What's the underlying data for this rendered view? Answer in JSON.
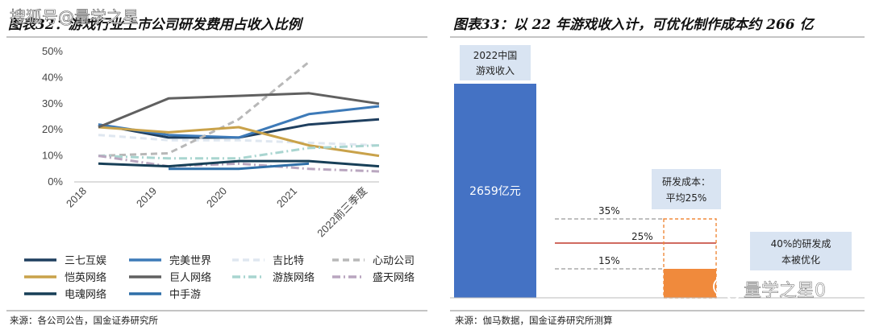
{
  "watermark_top": "搜狐号@量学之星",
  "watermark_bottom": "量学之星0",
  "left_chart": {
    "title": "图表32：游戏行业上市公司研发费用占收入比例",
    "source": "来源：各公司公告，国金证券研究所"
  },
  "right_chart": {
    "title": "图表33：以 22 年游戏收入计，可优化制作成本约 266 亿",
    "source": "来源：伽马数据，国金证券研究所测算"
  },
  "colors": {
    "bar_blue": "#4472c4",
    "bar_orange": "#f08a3c",
    "line_red": "#c0392b",
    "box_bg": "#d9e4f2"
  },
  "chart_data": [
    {
      "type": "line",
      "title": "游戏行业上市公司研发费用占收入比例",
      "categories": [
        "2018",
        "2019",
        "2020",
        "2021",
        "2022前三季度"
      ],
      "y_ticks": [
        "0%",
        "10%",
        "20%",
        "30%",
        "40%",
        "50%"
      ],
      "ylim": [
        0,
        50
      ],
      "grid": false,
      "legend": "bottom",
      "series": [
        {
          "name": "三七互娱",
          "color": "#1f3f5f",
          "dash": "solid",
          "values": [
            22,
            17,
            17,
            22,
            24
          ]
        },
        {
          "name": "完美世界",
          "color": "#3d7ab8",
          "dash": "solid",
          "values": [
            22,
            18,
            17,
            26,
            29
          ]
        },
        {
          "name": "吉比特",
          "color": "#dfe7f0",
          "dash": "long",
          "values": [
            18,
            16,
            16,
            15,
            14
          ]
        },
        {
          "name": "心动公司",
          "color": "#b8b8b8",
          "dash": "long",
          "values": [
            10,
            11,
            24,
            46,
            null
          ]
        },
        {
          "name": "恺英网络",
          "color": "#c9a24a",
          "dash": "solid",
          "values": [
            21,
            19,
            21,
            14,
            10
          ]
        },
        {
          "name": "巨人网络",
          "color": "#606060",
          "dash": "solid",
          "values": [
            21,
            32,
            33,
            34,
            30
          ]
        },
        {
          "name": "游族网络",
          "color": "#a9d5d0",
          "dash": "dashdot",
          "values": [
            10,
            9,
            9,
            13,
            14
          ]
        },
        {
          "name": "盛天网络",
          "color": "#b9a6bf",
          "dash": "dashdot",
          "values": [
            10,
            6,
            7,
            5,
            4
          ]
        },
        {
          "name": "电魂网络",
          "color": "#173f57",
          "dash": "solid",
          "values": [
            7,
            6,
            8,
            8,
            6
          ]
        },
        {
          "name": "中手游",
          "color": "#2f6fa8",
          "dash": "solid",
          "values": [
            null,
            5,
            5,
            7,
            null
          ]
        }
      ]
    },
    {
      "type": "bar",
      "title": "以22年游戏收入计，可优化制作成本约266亿",
      "bars": [
        {
          "label": "2022中国\n游戏收入",
          "value_label": "2659亿元",
          "value": 2659
        },
        {
          "label": "研发成本：\n平均25%",
          "value": 665,
          "range_low": "15%",
          "range_mid": "25%",
          "range_high": "35%"
        }
      ],
      "annotations": {
        "optimized_box": "40%的研发成\n本被优化",
        "line_35": "35%",
        "line_25": "25%",
        "line_15": "15%"
      }
    }
  ]
}
